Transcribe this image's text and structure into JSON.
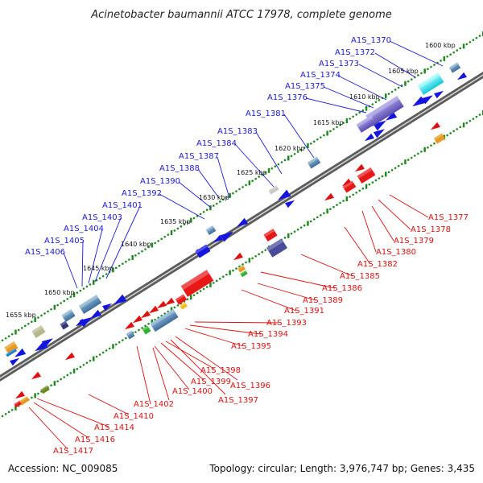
{
  "title": "Acinetobacter baumannii ATCC 17978, complete genome",
  "footer": {
    "accession": "Accession: NC_009085",
    "topology": "Topology: circular; Length: 3,976,747 bp; Genes: 3,435"
  },
  "colors": {
    "top_labels": "#1a1ad8",
    "bottom_labels": "#e01010",
    "backbone": "#6f6f6f",
    "tick_dots": "#1e8a1e"
  },
  "scale_labels": [
    "1600 kbp",
    "1605 kbp",
    "1610 kbp",
    "1615 kbp",
    "1620 kbp",
    "1625 kbp",
    "1630 kbp",
    "1635 kbp",
    "1640 kbp",
    "1645 kbp",
    "1650 kbp",
    "1655 kbp"
  ],
  "top_gene_labels": [
    "A1S_1370",
    "A1S_1372",
    "A1S_1373",
    "A1S_1374",
    "A1S_1375",
    "A1S_1376",
    "A1S_1381",
    "A1S_1383",
    "A1S_1384",
    "A1S_1387",
    "A1S_1388",
    "A1S_1390",
    "A1S_1392",
    "A1S_1401",
    "A1S_1403",
    "A1S_1404",
    "A1S_1405",
    "A1S_1406"
  ],
  "bottom_gene_labels": [
    "A1S_1377",
    "A1S_1378",
    "A1S_1379",
    "A1S_1380",
    "A1S_1382",
    "A1S_1385",
    "A1S_1386",
    "A1S_1389",
    "A1S_1391",
    "A1S_1393",
    "A1S_1394",
    "A1S_1395",
    "A1S_1396",
    "A1S_1397",
    "A1S_1398",
    "A1S_1399",
    "A1S_1400",
    "A1S_1402",
    "A1S_1410",
    "A1S_1414",
    "A1S_1416",
    "A1S_1417"
  ]
}
